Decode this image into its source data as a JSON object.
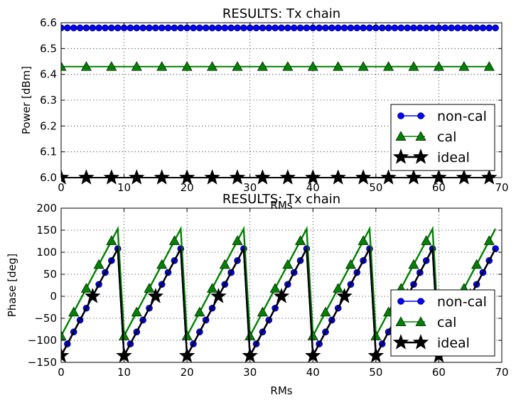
{
  "chart_data": [
    {
      "type": "line",
      "title": "RESULTS: Tx chain",
      "xlabel": "RMs",
      "ylabel": "Power [dBm]",
      "xlim": [
        0,
        70
      ],
      "ylim": [
        6.0,
        6.6
      ],
      "xticks": [
        0,
        10,
        20,
        30,
        40,
        50,
        60,
        70
      ],
      "yticks": [
        6.0,
        6.1,
        6.2,
        6.3,
        6.4,
        6.5,
        6.6
      ],
      "ytick_labels": [
        "6.0",
        "6.1",
        "6.2",
        "6.3",
        "6.4",
        "6.5",
        "6.6"
      ],
      "grid": true,
      "legend_position": "lower-right",
      "series": [
        {
          "name": "non-cal",
          "color": "#0000ff",
          "marker": "circle",
          "x_start": 0,
          "x_end": 69,
          "x_step": 1,
          "value": 6.58
        },
        {
          "name": "cal",
          "color": "#008000",
          "marker": "triangle",
          "x_start": 0,
          "x_end": 68,
          "x_step": 4,
          "value": 6.43
        },
        {
          "name": "ideal",
          "color": "#000000",
          "marker": "star",
          "x_start": 0,
          "x_end": 68,
          "x_step": 4,
          "value": 6.0
        }
      ]
    },
    {
      "type": "line",
      "title": "RESULTS: Tx chain",
      "xlabel": "RMs",
      "ylabel": "Phase [deg]",
      "xlim": [
        0,
        70
      ],
      "ylim": [
        -150,
        200
      ],
      "xticks": [
        0,
        10,
        20,
        30,
        40,
        50,
        60,
        70
      ],
      "yticks": [
        -150,
        -100,
        -50,
        0,
        50,
        100,
        150,
        200
      ],
      "ytick_labels": [
        "−150",
        "−100",
        "−50",
        "0",
        "50",
        "100",
        "150",
        "200"
      ],
      "grid": true,
      "legend_position": "center-right",
      "series": [
        {
          "name": "non-cal",
          "color": "#0000ff",
          "marker": "circle",
          "x_start": 0,
          "x_end": 69,
          "x_step": 1,
          "period": 10,
          "start": -135,
          "slope": 27,
          "marker_every": 1
        },
        {
          "name": "cal",
          "color": "#008000",
          "marker": "triangle",
          "x_start": 0,
          "x_end": 69,
          "x_step": 1,
          "period": 10,
          "start": -90,
          "slope": 27,
          "marker_every": 2
        },
        {
          "name": "ideal",
          "color": "#000000",
          "marker": "star",
          "x_start": 0,
          "x_end": 69,
          "x_step": 1,
          "period": 10,
          "start": -135,
          "slope": 27,
          "marker_every": 5
        }
      ]
    }
  ]
}
